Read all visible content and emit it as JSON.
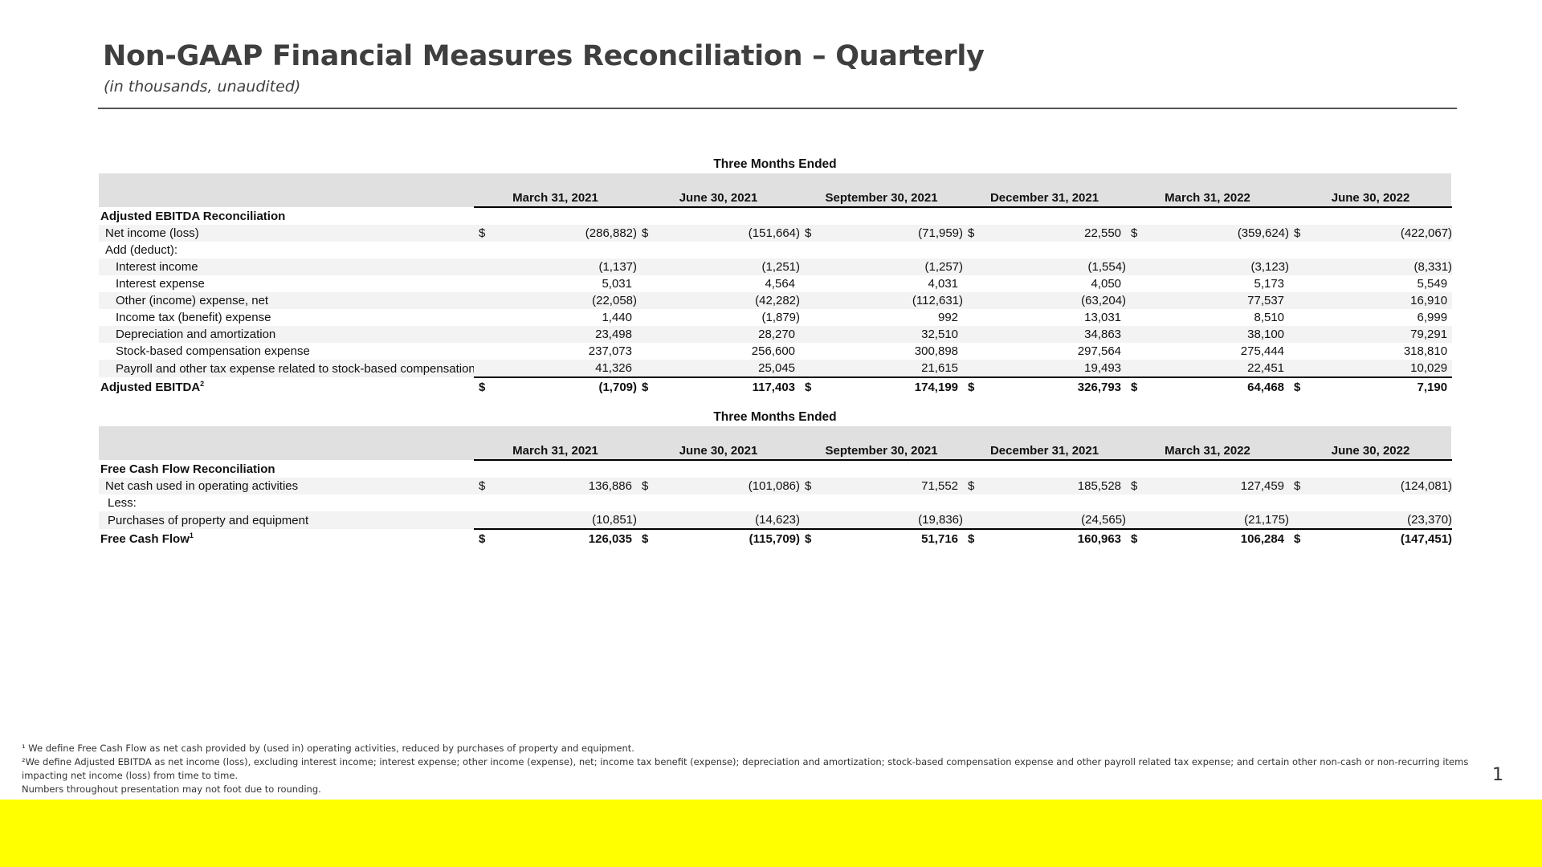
{
  "title": "Non-GAAP Financial Measures Reconciliation – Quarterly",
  "subtitle": "(in thousands, unaudited)",
  "section_heading": "Three Months Ended",
  "columns": [
    "March 31, 2021",
    "June 30, 2021",
    "September 30, 2021",
    "December 31, 2021",
    "March 31, 2022",
    "June 30, 2022"
  ],
  "ebitda": {
    "heading": "Adjusted EBITDA Reconciliation",
    "rows": [
      {
        "label": "Net income (loss)",
        "dollar": "$",
        "values": [
          "(286,882)",
          "(151,664)",
          "(71,959)",
          "22,550",
          "(359,624)",
          "(422,067)"
        ]
      },
      {
        "label": "Add (deduct):",
        "dollar": "",
        "values": [
          "",
          "",
          "",
          "",
          "",
          ""
        ]
      },
      {
        "label": "Interest income",
        "dollar": "",
        "values": [
          "(1,137)",
          "(1,251)",
          "(1,257)",
          "(1,554)",
          "(3,123)",
          "(8,331)"
        ]
      },
      {
        "label": "Interest expense",
        "dollar": "",
        "values": [
          "5,031",
          "4,564",
          "4,031",
          "4,050",
          "5,173",
          "5,549"
        ]
      },
      {
        "label": "Other (income) expense, net",
        "dollar": "",
        "values": [
          "(22,058)",
          "(42,282)",
          "(112,631)",
          "(63,204)",
          "77,537",
          "16,910"
        ]
      },
      {
        "label": "Income tax (benefit) expense",
        "dollar": "",
        "values": [
          "1,440",
          "(1,879)",
          "992",
          "13,031",
          "8,510",
          "6,999"
        ]
      },
      {
        "label": "Depreciation and amortization",
        "dollar": "",
        "values": [
          "23,498",
          "28,270",
          "32,510",
          "34,863",
          "38,100",
          "79,291"
        ]
      },
      {
        "label": "Stock-based compensation expense",
        "dollar": "",
        "values": [
          "237,073",
          "256,600",
          "300,898",
          "297,564",
          "275,444",
          "318,810"
        ]
      },
      {
        "label": "Payroll and other tax expense related to stock-based compensation",
        "dollar": "",
        "values": [
          "41,326",
          "25,045",
          "21,615",
          "19,493",
          "22,451",
          "10,029"
        ]
      }
    ],
    "total": {
      "label": "Adjusted EBITDA",
      "sup": "2",
      "dollar": "$",
      "values": [
        "(1,709)",
        "117,403",
        "174,199",
        "326,793",
        "64,468",
        "7,190"
      ]
    }
  },
  "fcf": {
    "heading": "Free Cash Flow Reconciliation",
    "rows": [
      {
        "label": "Net cash used in operating activities",
        "dollar": "$",
        "values": [
          "136,886",
          "(101,086)",
          "71,552",
          "185,528",
          "127,459",
          "(124,081)"
        ]
      },
      {
        "label": "Less:",
        "dollar": "",
        "values": [
          "",
          "",
          "",
          "",
          "",
          ""
        ]
      },
      {
        "label": "Purchases of property and equipment",
        "dollar": "",
        "values": [
          "(10,851)",
          "(14,623)",
          "(19,836)",
          "(24,565)",
          "(21,175)",
          "(23,370)"
        ]
      }
    ],
    "total": {
      "label": "Free Cash Flow",
      "sup": "1",
      "dollar": "$",
      "values": [
        "126,035",
        "(115,709)",
        "51,716",
        "160,963",
        "106,284",
        "(147,451)"
      ]
    }
  },
  "footnotes": [
    "¹ We define Free Cash Flow as net cash provided by (used in) operating activities, reduced by purchases of property and equipment.",
    "²We define Adjusted EBITDA as net income (loss), excluding interest income; interest expense; other income (expense), net; income tax benefit (expense); depreciation and amortization; stock-based compensation expense and other payroll related tax expense; and certain other non-cash or non-recurring items",
    "impacting net income (loss) from time to time.",
    "Numbers throughout presentation may not foot due to rounding."
  ],
  "page_number": "1",
  "colors": {
    "accent_bar": "#ffff00",
    "header_band": "#e0e0e0",
    "title": "#3f3f3f"
  }
}
